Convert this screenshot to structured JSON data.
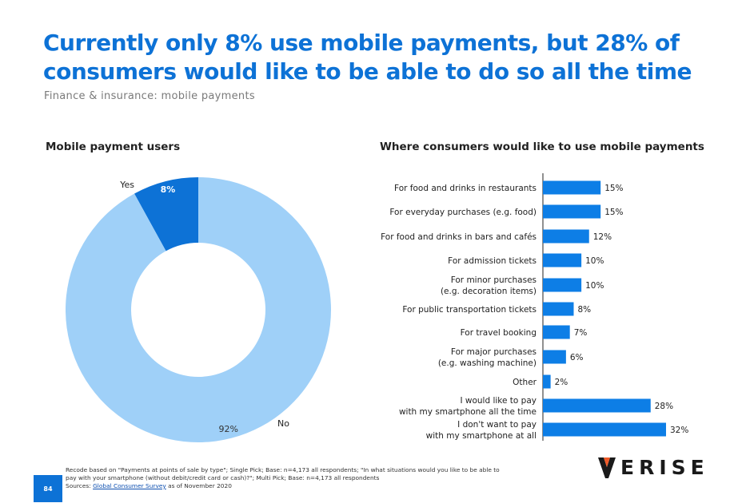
{
  "title": "Currently only 8% use mobile payments, but 28% of consumers would like to be able to do so all the time",
  "subtitle": "Finance & insurance: mobile payments",
  "colors": {
    "accent": "#0d72d6",
    "light": "#9fd0f8",
    "bar": "#0d7ee6"
  },
  "chart_data": [
    {
      "type": "pie",
      "title": "Mobile payment users",
      "donut": true,
      "slices": [
        {
          "label": "Yes",
          "value": 8,
          "value_label": "8%"
        },
        {
          "label": "No",
          "value": 92,
          "value_label": "92%"
        }
      ]
    },
    {
      "type": "bar",
      "orientation": "horizontal",
      "title": "Where consumers would like to use mobile payments",
      "categories": [
        [
          "For food and drinks in restaurants"
        ],
        [
          "For everyday purchases (e.g. food)"
        ],
        [
          "For food and drinks in bars and cafés"
        ],
        [
          "For admission tickets"
        ],
        [
          "For minor purchases",
          "(e.g. decoration items)"
        ],
        [
          "For public transportation tickets"
        ],
        [
          "For travel booking"
        ],
        [
          "For major purchases",
          "(e.g. washing machine)"
        ],
        [
          "Other"
        ],
        [
          "I would like to pay",
          "with my smartphone all the time"
        ],
        [
          "I don't want to pay",
          "with my smartphone at all"
        ]
      ],
      "values": [
        15,
        15,
        12,
        10,
        10,
        8,
        7,
        6,
        2,
        28,
        32
      ],
      "value_labels": [
        "15%",
        "15%",
        "12%",
        "10%",
        "10%",
        "8%",
        "7%",
        "6%",
        "2%",
        "28%",
        "32%"
      ]
    }
  ],
  "footnote": {
    "line1": "Recode based on \"Payments at points of sale by type\"; Single Pick; Base: n=4,173 all respondents; \"In what situations would you like to be able to",
    "line2": "pay with your smartphone (without debit/credit card or cash)?\"; Multi Pick; Base: n=4,173 all respondents",
    "sources_prefix": "Sources: ",
    "sources_link": "Global Consumer Survey",
    "sources_suffix": " as of November 2020"
  },
  "page_number": "84",
  "logo_text": "ERISE"
}
